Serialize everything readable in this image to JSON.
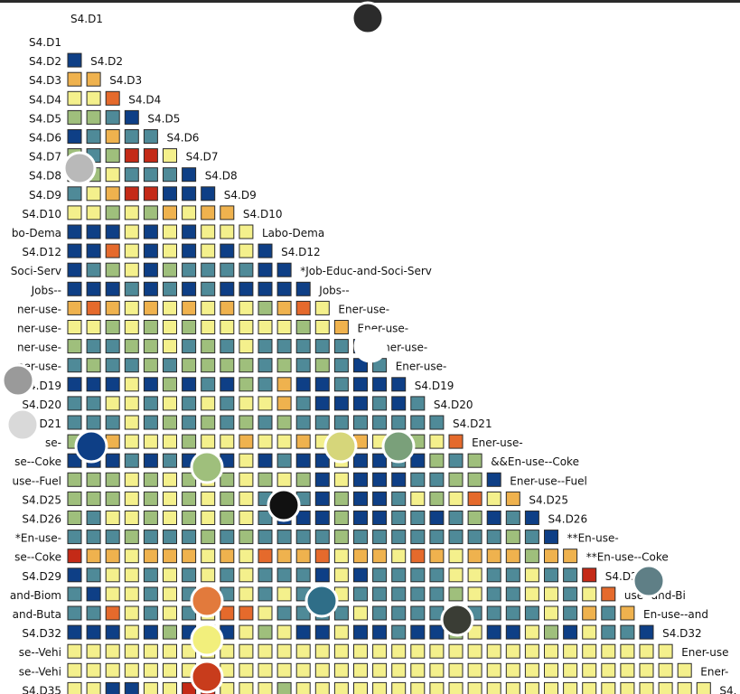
{
  "chart_data": {
    "type": "heatmap",
    "title": "",
    "xlabel": "",
    "ylabel": "",
    "row_labels": [
      "S4.D1",
      "S4.D2",
      "S4.D3",
      "S4.D4",
      "S4.D5",
      "S4.D6",
      "S4.D7",
      "S4.D8",
      "S4.D9",
      "S4.D10",
      "Labo-Dema",
      "S4.D12",
      "Job-Educ-and-Soci-Serv",
      "Jobs--",
      "Ener-use-",
      "Ener-use-",
      "Ener-use-",
      "Ener-use-",
      "S4.D19",
      "S4.D20",
      "S4.D21",
      "Ener-use-",
      "&&En-use--Coke",
      "Ener-use--Fuel",
      "S4.D25",
      "S4.D26",
      "**En-use-",
      "**En-use--Coke",
      "S4.D29",
      "use--and-Biom",
      "En-use--and-Buta",
      "S4.D32",
      "Ener-use--Vehi",
      "Ener-use--Vehi",
      "S4.D35"
    ],
    "row_labels_visible": [
      "S4.D1",
      "S4.D2",
      "S4.D3",
      "S4.D4",
      "S4.D5",
      "S4.D6",
      "S4.D7",
      "S4.D8",
      "S4.D9",
      "S4.D10",
      "bo-Dema",
      "S4.D12",
      "Soci-Serv",
      "Jobs--",
      "ner-use-",
      "ner-use-",
      "ner-use-",
      "ner-use-",
      "S4.D19",
      "S4.D20",
      "S4.D21",
      "se-",
      "se--Coke",
      "use--Fuel",
      "S4.D25",
      "S4.D26",
      "*En-use-",
      "se--Coke",
      "S4.D29",
      "and-Biom",
      "and-Buta",
      "S4.D32",
      "se--Vehi",
      "se--Vehi",
      "S4.D35"
    ],
    "diagonal_labels": [
      "",
      "S4.D2",
      "S4.D3",
      "S4.D4",
      "S4.D5",
      "S4.D6",
      "S4.D7",
      "S4.D8",
      "S4.D9",
      "S4.D10",
      "Labo-Dema",
      "S4.D12",
      "*Job-Educ-and-Soci-Serv",
      "Jobs--",
      "Ener-use-",
      "Ener-use-",
      "Ener-use-",
      "Ener-use-",
      "S4.D19",
      "S4.D20",
      "S4.D21",
      "Ener-use-",
      "&&En-use--Coke",
      "Ener-use--Fuel",
      "S4.D25",
      "S4.D26",
      "**En-use-",
      "**En-use--Coke",
      "S4.D29",
      "use--and-Bi",
      "En-use--and",
      "S4.D32",
      "Ener-use",
      "Ener-",
      "S4."
    ],
    "color_scale": [
      {
        "value": -1.0,
        "color": "#0e3f86"
      },
      {
        "value": -0.5,
        "color": "#4f8a98"
      },
      {
        "value": -0.25,
        "color": "#9fbf7c"
      },
      {
        "value": 0.0,
        "color": "#f4f08c"
      },
      {
        "value": 0.4,
        "color": "#efb24e"
      },
      {
        "value": 0.7,
        "color": "#e56a2c"
      },
      {
        "value": 1.0,
        "color": "#c42a17"
      }
    ],
    "cell_border_color": "#2a2a2a",
    "value_range": [
      -1,
      1
    ],
    "layout": "lower-triangle",
    "matrix_note": "values estimated from cell colors; -1 = dark blue, 0 = yellow, 1 = red",
    "values": [
      [],
      [
        -1.0
      ],
      [
        0.4,
        0.4
      ],
      [
        0.0,
        0.0,
        0.7
      ],
      [
        -0.25,
        -0.25,
        -0.5,
        -1.0
      ],
      [
        -1.0,
        -0.5,
        0.4,
        -0.5,
        -0.5
      ],
      [
        -0.25,
        -0.5,
        -0.25,
        1.0,
        1.0,
        0.0
      ],
      [
        -0.25,
        -0.25,
        0.0,
        -0.5,
        -0.5,
        -0.5,
        -1.0
      ],
      [
        -0.5,
        0.0,
        0.4,
        1.0,
        1.0,
        -1.0,
        -1.0,
        -1.0
      ],
      [
        0.0,
        0.0,
        -0.25,
        0.0,
        -0.25,
        0.4,
        0.0,
        0.4,
        0.4
      ],
      [
        -1.0,
        -1.0,
        -1.0,
        0.0,
        -1.0,
        0.0,
        -1.0,
        0.0,
        0.0,
        0.0
      ],
      [
        -1.0,
        -1.0,
        0.7,
        0.0,
        -1.0,
        0.0,
        -1.0,
        0.0,
        -1.0,
        0.0,
        -1.0
      ],
      [
        -1.0,
        -0.5,
        -0.25,
        0.0,
        -1.0,
        -0.25,
        -0.5,
        -0.5,
        -0.5,
        -0.5,
        -1.0,
        -1.0
      ],
      [
        -1.0,
        -1.0,
        -1.0,
        -0.5,
        -1.0,
        -0.5,
        -1.0,
        -0.5,
        -1.0,
        -1.0,
        -1.0,
        -1.0,
        -1.0
      ],
      [
        0.4,
        0.7,
        0.4,
        0.0,
        0.4,
        0.0,
        0.4,
        0.0,
        0.4,
        0.0,
        -0.25,
        0.4,
        0.7,
        0.0
      ],
      [
        0.0,
        0.0,
        -0.25,
        0.0,
        -0.25,
        0.0,
        -0.25,
        0.0,
        0.0,
        0.0,
        0.0,
        0.0,
        -0.25,
        0.0,
        0.4
      ],
      [
        -0.25,
        -0.5,
        -0.5,
        -0.25,
        -0.25,
        0.0,
        -0.5,
        -0.25,
        -0.5,
        0.0,
        -0.5,
        -0.5,
        -0.5,
        -0.5,
        -0.5,
        -1.0
      ],
      [
        -0.5,
        -0.25,
        -0.5,
        -0.5,
        -0.25,
        -0.5,
        -0.25,
        -0.25,
        -0.25,
        -0.25,
        -0.5,
        -0.25,
        -0.5,
        -0.25,
        -0.5,
        -1.0,
        -0.5
      ],
      [
        -1.0,
        -1.0,
        -1.0,
        0.0,
        -1.0,
        -0.25,
        -1.0,
        -0.5,
        -1.0,
        -0.25,
        -0.5,
        0.4,
        -1.0,
        -1.0,
        -0.5,
        -1.0,
        -1.0,
        -1.0
      ],
      [
        -0.5,
        -0.5,
        0.0,
        0.0,
        -0.5,
        0.0,
        -0.5,
        0.0,
        -0.5,
        0.0,
        0.0,
        0.4,
        -0.5,
        -1.0,
        -1.0,
        -1.0,
        -0.5,
        -1.0,
        -0.5
      ],
      [
        -0.5,
        -0.5,
        -0.5,
        0.0,
        -0.5,
        -0.25,
        -0.5,
        -0.25,
        -0.5,
        -0.25,
        -0.5,
        -0.25,
        -0.5,
        -0.5,
        -0.5,
        -0.5,
        -0.5,
        -0.5,
        -0.5,
        -0.5
      ],
      [
        -0.25,
        -0.25,
        0.4,
        0.0,
        0.0,
        0.0,
        -0.25,
        0.0,
        0.0,
        0.4,
        0.0,
        0.0,
        0.4,
        0.0,
        0.0,
        0.4,
        0.0,
        0.7,
        -0.25,
        0.0,
        0.7
      ],
      [
        -1.0,
        -1.0,
        -1.0,
        -0.5,
        -1.0,
        -0.5,
        -1.0,
        0.0,
        -1.0,
        0.0,
        -1.0,
        -0.5,
        -1.0,
        -1.0,
        0.0,
        -1.0,
        -1.0,
        -0.5,
        -1.0,
        -0.25,
        -0.5,
        -0.25
      ],
      [
        -0.25,
        -0.25,
        -0.25,
        0.0,
        -0.25,
        0.0,
        -0.25,
        0.0,
        -0.25,
        0.0,
        -0.25,
        0.0,
        -0.25,
        -1.0,
        0.0,
        -1.0,
        -1.0,
        -1.0,
        -0.5,
        -0.5,
        -0.25,
        -0.25,
        -1.0
      ],
      [
        -0.25,
        -0.25,
        -0.25,
        0.0,
        -0.25,
        0.0,
        -0.25,
        0.0,
        -0.25,
        0.0,
        -0.5,
        -1.0,
        -0.5,
        -1.0,
        -0.25,
        -1.0,
        -1.0,
        -0.5,
        0.0,
        -0.25,
        0.0,
        0.7,
        0.0,
        0.4
      ],
      [
        -0.25,
        -0.5,
        0.0,
        0.0,
        -0.25,
        0.0,
        -0.25,
        0.0,
        -0.25,
        0.0,
        -0.5,
        -1.0,
        -1.0,
        -1.0,
        -0.25,
        -1.0,
        -1.0,
        -0.5,
        -0.5,
        -1.0,
        -0.5,
        -0.25,
        -1.0,
        -0.5,
        -1.0
      ],
      [
        -0.5,
        -0.5,
        -0.5,
        -0.25,
        -0.5,
        -0.5,
        -0.5,
        -0.25,
        -0.5,
        -0.25,
        -0.5,
        -0.5,
        -0.5,
        -0.5,
        -0.25,
        -0.5,
        -0.5,
        -0.5,
        -0.5,
        -0.5,
        -0.5,
        -0.5,
        -0.5,
        -0.25,
        -0.5,
        -1.0
      ],
      [
        1.0,
        0.4,
        0.4,
        0.0,
        0.4,
        0.4,
        0.4,
        0.0,
        0.4,
        0.0,
        0.7,
        0.4,
        0.4,
        0.7,
        0.0,
        0.4,
        0.4,
        0.0,
        0.7,
        0.4,
        0.0,
        0.4,
        0.4,
        0.4,
        -0.25,
        0.4,
        0.4
      ],
      [
        -1.0,
        -0.5,
        0.0,
        0.0,
        -0.5,
        0.0,
        -0.5,
        0.0,
        -0.5,
        0.0,
        -0.5,
        -0.5,
        -0.5,
        -1.0,
        0.0,
        -1.0,
        -0.5,
        -0.5,
        -0.5,
        -0.5,
        0.0,
        0.0,
        -0.5,
        -0.5,
        0.0,
        -0.5,
        -0.5,
        1.0
      ],
      [
        -0.5,
        -1.0,
        0.0,
        0.0,
        -0.5,
        0.0,
        -0.5,
        0.0,
        -0.5,
        0.0,
        -0.5,
        0.0,
        -0.5,
        -0.5,
        0.0,
        -0.5,
        -0.5,
        -0.5,
        -0.5,
        -0.5,
        -0.25,
        0.0,
        -0.5,
        -0.5,
        0.0,
        0.0,
        -0.5,
        0.0,
        0.7
      ],
      [
        -0.5,
        -0.5,
        0.7,
        0.0,
        -0.5,
        0.0,
        -0.5,
        0.0,
        0.7,
        0.7,
        0.0,
        -0.5,
        -0.5,
        -0.5,
        -0.5,
        0.0,
        -0.5,
        -0.5,
        -0.5,
        -0.5,
        -0.5,
        -0.5,
        -0.5,
        -0.5,
        -0.5,
        0.0,
        -0.5,
        0.4,
        -0.5,
        0.4
      ],
      [
        -1.0,
        -1.0,
        -1.0,
        0.0,
        -1.0,
        -0.25,
        -1.0,
        0.0,
        -1.0,
        0.0,
        -0.25,
        0.0,
        -1.0,
        -1.0,
        0.0,
        -1.0,
        -1.0,
        -0.5,
        -1.0,
        -1.0,
        -0.25,
        0.0,
        -1.0,
        -1.0,
        0.0,
        -0.25,
        -1.0,
        0.0,
        -0.5,
        -0.5,
        -1.0
      ],
      [
        0.0,
        0.0,
        0.0,
        0.0,
        0.0,
        0.0,
        0.0,
        0.0,
        0.0,
        0.0,
        0.0,
        0.0,
        0.0,
        0.0,
        0.0,
        0.0,
        0.0,
        0.0,
        0.0,
        0.0,
        0.0,
        0.0,
        0.0,
        0.0,
        0.0,
        0.0,
        0.0,
        0.0,
        0.0,
        0.0,
        0.0,
        0.0
      ],
      [
        0.0,
        0.0,
        0.0,
        0.0,
        0.0,
        0.0,
        0.0,
        0.0,
        0.0,
        0.0,
        0.0,
        0.0,
        0.0,
        0.0,
        0.0,
        0.0,
        0.0,
        0.0,
        0.0,
        0.0,
        0.0,
        0.0,
        0.0,
        0.0,
        0.0,
        0.0,
        0.0,
        0.0,
        0.0,
        0.0,
        0.0,
        0.0,
        0.0
      ],
      [
        0.0,
        0.0,
        -1.0,
        -1.0,
        0.0,
        0.0,
        1.0,
        1.0,
        0.0,
        0.0,
        0.0,
        -0.25,
        0.0,
        0.0,
        0.0,
        0.0,
        0.0,
        0.0,
        0.0,
        0.0,
        0.0,
        0.0,
        0.0,
        0.0,
        0.0,
        0.0,
        0.0,
        0.0,
        0.0,
        0.0,
        0.0,
        0.0,
        0.0,
        0.0
      ]
    ]
  },
  "markers": [
    {
      "name": "marker-dark-top",
      "color": "#2b2b2b"
    },
    {
      "name": "marker-gray-d8",
      "color": "#b9b9b9"
    },
    {
      "name": "marker-gray-d19",
      "color": "#9a9a9a"
    },
    {
      "name": "marker-lightgray",
      "color": "#d9d9d9"
    },
    {
      "name": "marker-blue",
      "color": "#0e3f86"
    },
    {
      "name": "marker-green",
      "color": "#9fbf7c"
    },
    {
      "name": "marker-yellowgreen",
      "color": "#d6d67a"
    },
    {
      "name": "marker-sage",
      "color": "#7aa07a"
    },
    {
      "name": "marker-white",
      "color": "#ffffff"
    },
    {
      "name": "marker-black",
      "color": "#111111"
    },
    {
      "name": "marker-slate",
      "color": "#5f7f86"
    },
    {
      "name": "marker-orange",
      "color": "#e27a3c"
    },
    {
      "name": "marker-teal",
      "color": "#2f6e88"
    },
    {
      "name": "marker-darkolive",
      "color": "#3a3d35"
    },
    {
      "name": "marker-yellow",
      "color": "#f2ef7c"
    },
    {
      "name": "marker-red",
      "color": "#c83c1c"
    }
  ]
}
